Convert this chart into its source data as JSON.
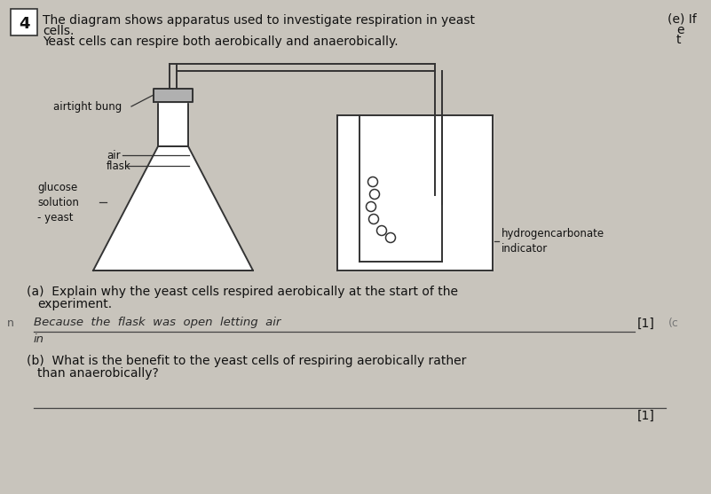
{
  "background_color": "#c8c4bc",
  "page_bg": "#e8e4de",
  "title_number": "4",
  "title_text1": "The diagram shows apparatus used to investigate respiration in yeast",
  "title_text2": "cells.",
  "title_text3": "Yeast cells can respire both aerobically and anaerobically.",
  "right_text1": "(e) If",
  "right_text2": "e",
  "right_text3": "t",
  "question_a": "(a)  Explain why the yeast cells respired aerobically at the start of the\n       experiment.",
  "answer_a": "Because  the  flask  was  open  letting  air",
  "answer_a2": "in",
  "mark_a": "[1]",
  "question_b": "(b)  What is the benefit to the yeast cells of respiring aerobically rather\n       than anaerobically?",
  "mark_b": "[1]",
  "label_bung": "airtight bung",
  "label_air": "air",
  "label_flask": "flask",
  "label_glucose": "glucose\nsolution\n- yeast",
  "label_hydro": "hydrogencarbonate\nindicator",
  "font_size_body": 10,
  "font_size_small": 8.5,
  "line_color": "#333333",
  "text_color": "#111111"
}
